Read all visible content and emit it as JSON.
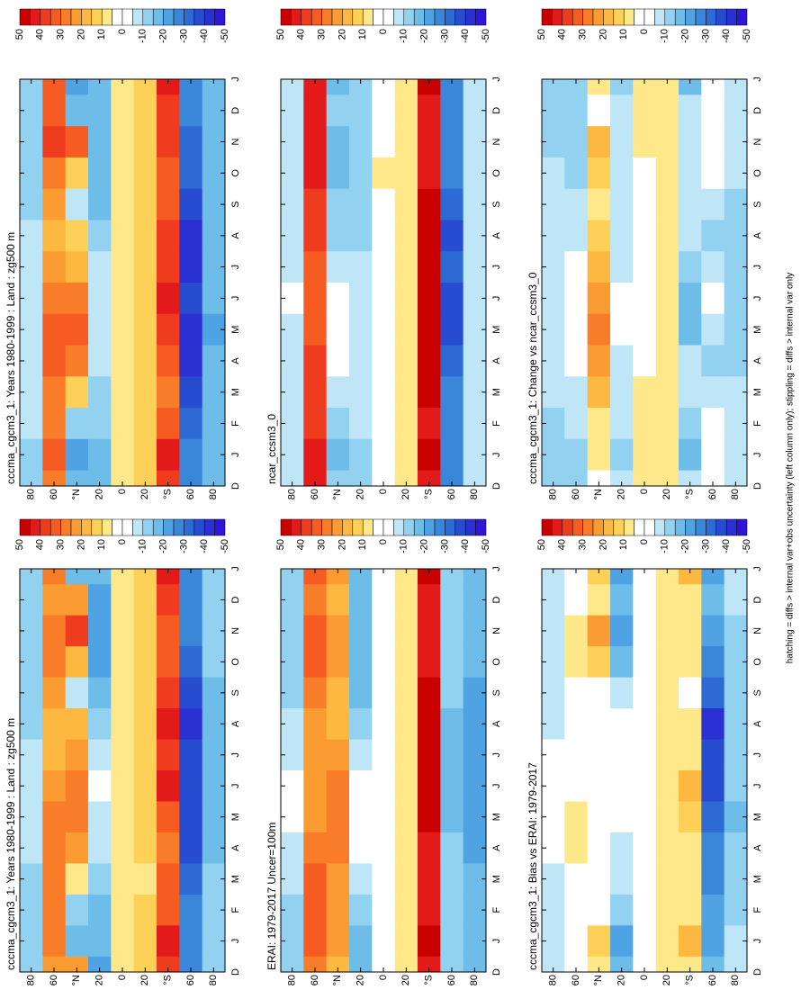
{
  "chart_data": [
    {
      "type": "heatmap",
      "title": "cccma_cgcm3_1: Years 1980-1999 : Land : zg500 m",
      "categories": [
        "D",
        "J",
        "F",
        "M",
        "A",
        "M",
        "J",
        "J",
        "A",
        "S",
        "O",
        "N",
        "D",
        "J"
      ],
      "ylim": [
        90,
        -90
      ],
      "yticks": [
        80,
        60,
        {
          "value": 40,
          "label": "°N"
        },
        20,
        0,
        {
          "value": -20,
          "label": "20"
        },
        {
          "value": -40,
          "label": "°S"
        },
        {
          "value": -60,
          "label": "60"
        },
        {
          "value": -80,
          "label": "80"
        }
      ],
      "values": [
        [
          -15,
          -15,
          -15,
          -15,
          -10,
          -10,
          -10,
          -10,
          -15,
          -15,
          -15,
          -15,
          -15,
          -15
        ],
        [
          20,
          25,
          25,
          25,
          25,
          25,
          20,
          15,
          15,
          20,
          25,
          25,
          20,
          25
        ],
        [
          20,
          -20,
          -15,
          5,
          20,
          25,
          25,
          20,
          15,
          -10,
          15,
          35,
          20,
          -20
        ],
        [
          -25,
          -20,
          -20,
          -15,
          -10,
          -10,
          -5,
          -10,
          -15,
          -20,
          -25,
          -25,
          -25,
          -20
        ],
        [
          5,
          5,
          5,
          5,
          5,
          5,
          5,
          5,
          5,
          5,
          5,
          5,
          5,
          5
        ],
        [
          10,
          10,
          10,
          5,
          10,
          10,
          10,
          10,
          10,
          10,
          10,
          10,
          10,
          10
        ],
        [
          35,
          40,
          30,
          30,
          25,
          30,
          40,
          35,
          40,
          35,
          30,
          30,
          35,
          40
        ],
        [
          -30,
          -30,
          -30,
          -35,
          -40,
          -40,
          -40,
          -40,
          -45,
          -40,
          -35,
          -30,
          -30,
          -30
        ],
        [
          -15,
          -15,
          -15,
          -15,
          -20,
          -20,
          -20,
          -20,
          -20,
          -20,
          -15,
          -15,
          -15,
          -15
        ]
      ]
    },
    {
      "type": "heatmap",
      "title": "cccma_cgcm3_1: Years 1980-1999 : Land : zg500 m",
      "categories": [
        "D",
        "J",
        "F",
        "M",
        "A",
        "M",
        "J",
        "J",
        "A",
        "S",
        "O",
        "N",
        "D",
        "J"
      ],
      "ylim": [
        90,
        -90
      ],
      "yticks": [
        80,
        60,
        {
          "value": 40,
          "label": "°N"
        },
        20,
        0,
        {
          "value": -20,
          "label": "20"
        },
        {
          "value": -40,
          "label": "°S"
        },
        {
          "value": -60,
          "label": "60"
        },
        {
          "value": -80,
          "label": "80"
        }
      ],
      "values": [
        [
          -15,
          -15,
          -10,
          -10,
          -10,
          -10,
          -10,
          -10,
          -10,
          -15,
          -15,
          -15,
          -15,
          -15
        ],
        [
          25,
          30,
          25,
          25,
          30,
          30,
          25,
          20,
          15,
          20,
          25,
          35,
          30,
          30
        ],
        [
          -20,
          -25,
          -15,
          10,
          25,
          30,
          25,
          15,
          10,
          -10,
          10,
          30,
          -20,
          -25
        ],
        [
          -20,
          -20,
          -15,
          -15,
          -10,
          -10,
          -10,
          -10,
          -15,
          -20,
          -20,
          -20,
          -20,
          -20
        ],
        [
          5,
          5,
          5,
          5,
          5,
          5,
          5,
          5,
          5,
          5,
          5,
          5,
          5,
          5
        ],
        [
          10,
          10,
          10,
          10,
          10,
          10,
          10,
          10,
          10,
          10,
          10,
          10,
          10,
          10
        ],
        [
          35,
          40,
          30,
          25,
          30,
          35,
          40,
          35,
          35,
          30,
          30,
          35,
          35,
          40
        ],
        [
          -30,
          -30,
          -35,
          -40,
          -45,
          -45,
          -40,
          -45,
          -45,
          -40,
          -35,
          -35,
          -30,
          -30
        ],
        [
          -20,
          -20,
          -20,
          -20,
          -20,
          -25,
          -20,
          -20,
          -20,
          -20,
          -20,
          -20,
          -20,
          -20
        ]
      ]
    },
    {
      "type": "heatmap",
      "title": "ERAI: 1979-2017 Uncer=100m",
      "categories": [
        "D",
        "J",
        "F",
        "M",
        "A",
        "M",
        "J",
        "J",
        "A",
        "S",
        "O",
        "N",
        "D",
        "J"
      ],
      "ylim": [
        90,
        -90
      ],
      "yticks": [
        80,
        60,
        {
          "value": 40,
          "label": "°N"
        },
        20,
        0,
        {
          "value": -20,
          "label": "20"
        },
        {
          "value": -40,
          "label": "°S"
        },
        {
          "value": -60,
          "label": "60"
        },
        {
          "value": -80,
          "label": "80"
        }
      ],
      "values": [
        [
          -15,
          -15,
          -15,
          -10,
          -10,
          -5,
          -5,
          -10,
          -10,
          -15,
          -15,
          -15,
          -15,
          -15
        ],
        [
          25,
          30,
          30,
          30,
          25,
          20,
          20,
          20,
          20,
          25,
          30,
          30,
          25,
          30
        ],
        [
          15,
          20,
          20,
          20,
          25,
          25,
          25,
          20,
          15,
          15,
          20,
          20,
          15,
          20
        ],
        [
          -20,
          -20,
          -15,
          -10,
          -5,
          -5,
          -5,
          -10,
          -15,
          -20,
          -20,
          -20,
          -20,
          -20
        ],
        [
          0,
          0,
          0,
          0,
          0,
          0,
          0,
          0,
          0,
          0,
          0,
          0,
          0,
          0
        ],
        [
          5,
          5,
          5,
          5,
          5,
          5,
          5,
          5,
          5,
          5,
          5,
          5,
          5,
          5
        ],
        [
          40,
          45,
          40,
          40,
          40,
          45,
          50,
          50,
          50,
          45,
          40,
          40,
          40,
          45
        ],
        [
          -15,
          -15,
          -15,
          -15,
          -15,
          -20,
          -20,
          -20,
          -20,
          -15,
          -15,
          -15,
          -15,
          -15
        ],
        [
          -20,
          -20,
          -20,
          -20,
          -25,
          -25,
          -25,
          -25,
          -25,
          -25,
          -20,
          -20,
          -20,
          -20
        ]
      ]
    },
    {
      "type": "heatmap",
      "title": "ncar_ccsm3_0",
      "categories": [
        "D",
        "J",
        "F",
        "M",
        "A",
        "M",
        "J",
        "J",
        "A",
        "S",
        "O",
        "N",
        "D",
        "J"
      ],
      "ylim": [
        90,
        -90
      ],
      "yticks": [
        80,
        60,
        {
          "value": 40,
          "label": "°N"
        },
        20,
        0,
        {
          "value": -20,
          "label": "20"
        },
        {
          "value": -40,
          "label": "°S"
        },
        {
          "value": -60,
          "label": "60"
        },
        {
          "value": -80,
          "label": "80"
        }
      ],
      "values": [
        [
          -10,
          -10,
          -10,
          -10,
          -10,
          -10,
          -5,
          -10,
          -10,
          -10,
          -10,
          -10,
          -10,
          -10
        ],
        [
          40,
          40,
          35,
          35,
          35,
          30,
          30,
          30,
          35,
          35,
          40,
          40,
          40,
          40
        ],
        [
          -15,
          -20,
          -15,
          -10,
          -5,
          -5,
          -5,
          -10,
          -15,
          -15,
          -20,
          -20,
          -15,
          -20
        ],
        [
          -15,
          -15,
          -10,
          -10,
          -10,
          -10,
          -10,
          -10,
          -15,
          -15,
          -15,
          -15,
          -15,
          -15
        ],
        [
          0,
          0,
          0,
          0,
          0,
          0,
          0,
          0,
          0,
          0,
          5,
          0,
          0,
          0
        ],
        [
          5,
          5,
          5,
          5,
          5,
          5,
          5,
          5,
          5,
          5,
          5,
          5,
          5,
          5
        ],
        [
          40,
          45,
          40,
          45,
          45,
          50,
          50,
          45,
          45,
          45,
          40,
          40,
          40,
          45
        ],
        [
          -30,
          -30,
          -30,
          -30,
          -35,
          -40,
          -40,
          -35,
          -40,
          -35,
          -30,
          -30,
          -30,
          -30
        ],
        [
          -10,
          -10,
          -10,
          -10,
          -10,
          -10,
          -10,
          -10,
          -10,
          -10,
          -10,
          -10,
          -10,
          -10
        ]
      ]
    },
    {
      "type": "heatmap",
      "title": "cccma_cgcm3_1: Bias vs ERAI: 1979-2017",
      "categories": [
        "D",
        "J",
        "F",
        "M",
        "A",
        "M",
        "J",
        "J",
        "A",
        "S",
        "O",
        "N",
        "D",
        "J"
      ],
      "ylim": [
        90,
        -90
      ],
      "yticks": [
        80,
        60,
        {
          "value": 40,
          "label": "°N"
        },
        20,
        0,
        {
          "value": -20,
          "label": "20"
        },
        {
          "value": -40,
          "label": "°S"
        },
        {
          "value": -60,
          "label": "60"
        },
        {
          "value": -80,
          "label": "80"
        }
      ],
      "values": [
        [
          -10,
          -10,
          -10,
          -10,
          -5,
          -5,
          -5,
          -5,
          -10,
          -10,
          -10,
          -10,
          -10,
          -10
        ],
        [
          0,
          0,
          0,
          0,
          5,
          5,
          0,
          0,
          0,
          0,
          5,
          5,
          0,
          0
        ],
        [
          5,
          10,
          0,
          0,
          0,
          0,
          0,
          0,
          0,
          0,
          10,
          20,
          5,
          10
        ],
        [
          -20,
          -25,
          -15,
          -10,
          -10,
          -5,
          0,
          0,
          -5,
          -10,
          -20,
          -25,
          -20,
          -25
        ],
        [
          0,
          0,
          0,
          0,
          0,
          0,
          0,
          0,
          0,
          0,
          0,
          0,
          0,
          0
        ],
        [
          5,
          5,
          5,
          5,
          5,
          5,
          5,
          5,
          5,
          5,
          5,
          5,
          5,
          5
        ],
        [
          5,
          15,
          5,
          5,
          5,
          10,
          15,
          5,
          5,
          -5,
          5,
          5,
          5,
          15
        ],
        [
          -20,
          -25,
          -25,
          -30,
          -30,
          -35,
          -40,
          -40,
          -45,
          -35,
          -30,
          -25,
          -20,
          -25
        ],
        [
          -10,
          -10,
          -15,
          -15,
          -15,
          -20,
          -15,
          -15,
          -15,
          -15,
          -15,
          -15,
          -10,
          -10
        ]
      ]
    },
    {
      "type": "heatmap",
      "title": "cccma_cgcm3_1: Change vs ncar_ccsm3_0",
      "categories": [
        "D",
        "J",
        "F",
        "M",
        "A",
        "M",
        "J",
        "J",
        "A",
        "S",
        "O",
        "N",
        "D",
        "J"
      ],
      "ylim": [
        90,
        -90
      ],
      "yticks": [
        80,
        60,
        {
          "value": 40,
          "label": "°N"
        },
        20,
        0,
        {
          "value": -20,
          "label": "20"
        },
        {
          "value": -40,
          "label": "°S"
        },
        {
          "value": -60,
          "label": "60"
        },
        {
          "value": -80,
          "label": "80"
        }
      ],
      "values": [
        [
          -15,
          -15,
          -15,
          -10,
          -10,
          -10,
          -10,
          -10,
          -10,
          -10,
          -10,
          -15,
          -15,
          -15
        ],
        [
          -15,
          -15,
          -10,
          -10,
          -5,
          0,
          -5,
          -5,
          -10,
          -10,
          -15,
          -15,
          -15,
          -15
        ],
        [
          0,
          5,
          5,
          15,
          20,
          25,
          20,
          15,
          10,
          5,
          10,
          15,
          0,
          5
        ],
        [
          -10,
          -15,
          -10,
          -10,
          -10,
          -5,
          -5,
          -10,
          -10,
          -10,
          -10,
          -10,
          -10,
          -15
        ],
        [
          5,
          5,
          5,
          5,
          0,
          0,
          0,
          0,
          0,
          0,
          0,
          5,
          5,
          5
        ],
        [
          5,
          5,
          5,
          5,
          5,
          5,
          5,
          5,
          5,
          5,
          5,
          5,
          5,
          5
        ],
        [
          -10,
          -20,
          -15,
          -10,
          -10,
          -20,
          -20,
          -15,
          -10,
          -10,
          -10,
          -10,
          -10,
          -20
        ],
        [
          -5,
          0,
          -5,
          -10,
          -15,
          -10,
          -5,
          -10,
          -15,
          -10,
          -5,
          -5,
          -5,
          0
        ],
        [
          -10,
          -10,
          -10,
          -10,
          -15,
          -15,
          -15,
          -15,
          -15,
          -15,
          -10,
          -10,
          -10,
          -10
        ]
      ]
    }
  ],
  "colorbar": {
    "levels": [
      50,
      45,
      40,
      35,
      30,
      25,
      20,
      15,
      10,
      5,
      0,
      -5,
      -10,
      -15,
      -20,
      -25,
      -30,
      -35,
      -40,
      -45,
      -50
    ],
    "colors": [
      "#c80000",
      "#e21a1a",
      "#f03c1e",
      "#f65c22",
      "#f97c28",
      "#fb9c32",
      "#fcb840",
      "#fdd158",
      "#fee88a",
      "#ffffff",
      "#ffffff",
      "#bfe6f7",
      "#92d2f0",
      "#6ebde9",
      "#4fa3e2",
      "#3a87da",
      "#2e6ad4",
      "#284ccf",
      "#2a30d2",
      "#3014d8"
    ],
    "ticks": [
      50,
      40,
      30,
      20,
      10,
      0,
      -10,
      -20,
      -30,
      -40,
      -50
    ]
  },
  "footnote": "hatching = diffs > internal var+obs uncertainty (left column only); stippling = diffs > internal var only"
}
